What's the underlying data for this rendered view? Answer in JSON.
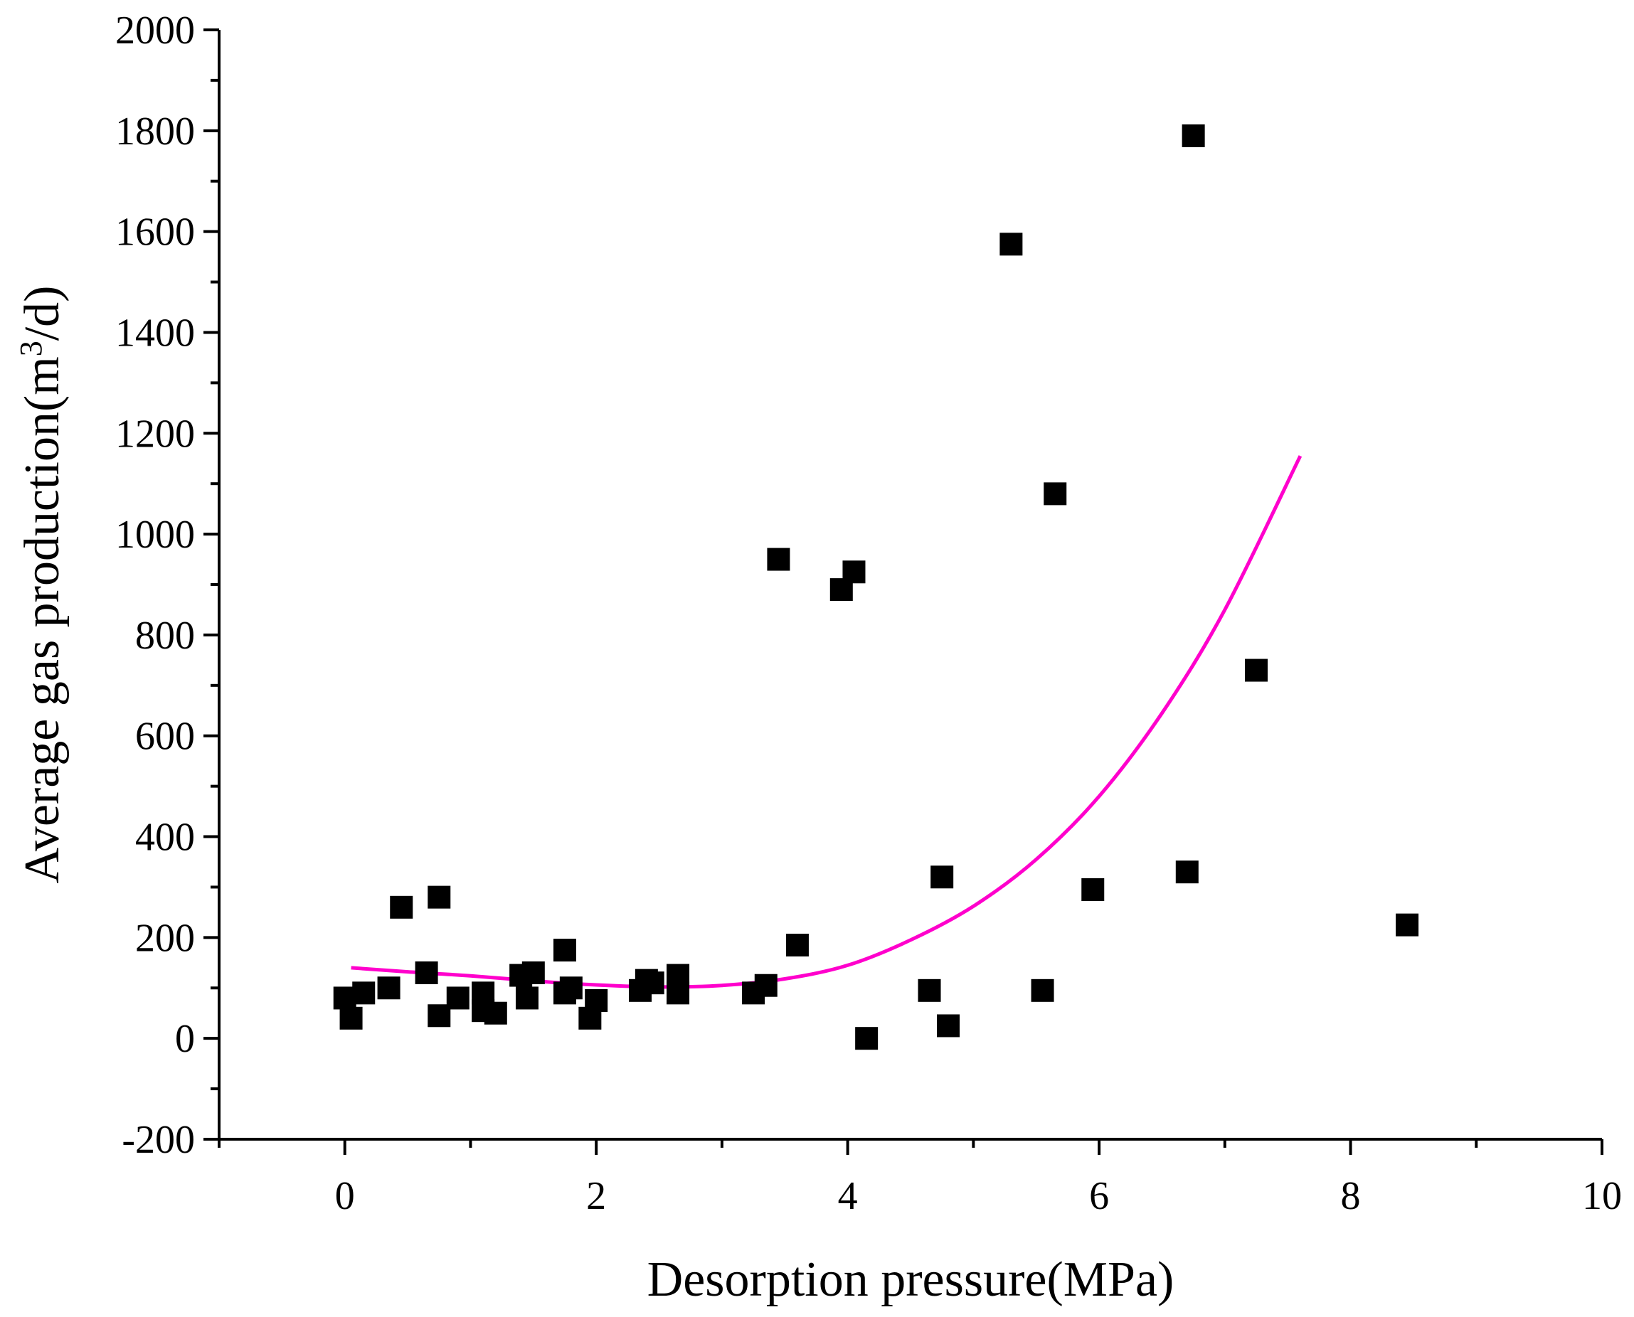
{
  "chart_data": {
    "type": "scatter",
    "title": "",
    "xlabel": "Desorption pressure(MPa)",
    "ylabel_prefix": "Average gas production(m",
    "ylabel_sup": "3",
    "ylabel_suffix": "/d)",
    "xlim": [
      -1,
      10
    ],
    "ylim": [
      -200,
      2000
    ],
    "x_ticks": [
      0,
      2,
      4,
      6,
      8,
      10
    ],
    "x_tick_labels": [
      "0",
      "2",
      "4",
      "6",
      "8",
      "10"
    ],
    "x_minor_ticks": [
      -1,
      1,
      3,
      5,
      7,
      9
    ],
    "y_ticks": [
      -200,
      0,
      200,
      400,
      600,
      800,
      1000,
      1200,
      1400,
      1600,
      1800,
      2000
    ],
    "y_tick_labels": [
      "-200",
      "0",
      "200",
      "400",
      "600",
      "800",
      "1000",
      "1200",
      "1400",
      "1600",
      "1800",
      "2000"
    ],
    "y_minor_ticks": [
      -100,
      100,
      300,
      500,
      700,
      900,
      1100,
      1300,
      1500,
      1700,
      1900
    ],
    "marker_color": "#000000",
    "fit_color": "#ff00cc",
    "points": [
      [
        0.0,
        80
      ],
      [
        0.05,
        40
      ],
      [
        0.15,
        90
      ],
      [
        0.35,
        100
      ],
      [
        0.45,
        260
      ],
      [
        0.65,
        130
      ],
      [
        0.75,
        280
      ],
      [
        0.75,
        45
      ],
      [
        0.9,
        80
      ],
      [
        1.1,
        90
      ],
      [
        1.1,
        55
      ],
      [
        1.2,
        50
      ],
      [
        1.4,
        125
      ],
      [
        1.45,
        80
      ],
      [
        1.5,
        130
      ],
      [
        1.75,
        175
      ],
      [
        1.75,
        90
      ],
      [
        1.8,
        100
      ],
      [
        1.95,
        40
      ],
      [
        2.0,
        75
      ],
      [
        2.35,
        95
      ],
      [
        2.4,
        115
      ],
      [
        2.45,
        110
      ],
      [
        2.65,
        125
      ],
      [
        2.65,
        90
      ],
      [
        3.25,
        90
      ],
      [
        3.35,
        105
      ],
      [
        3.45,
        950
      ],
      [
        3.6,
        185
      ],
      [
        3.95,
        890
      ],
      [
        4.05,
        925
      ],
      [
        4.15,
        0
      ],
      [
        4.65,
        95
      ],
      [
        4.75,
        320
      ],
      [
        4.8,
        25
      ],
      [
        5.3,
        1575
      ],
      [
        5.55,
        95
      ],
      [
        5.65,
        1080
      ],
      [
        5.95,
        295
      ],
      [
        6.7,
        330
      ],
      [
        6.75,
        1790
      ],
      [
        7.25,
        730
      ],
      [
        8.45,
        225
      ]
    ],
    "fit_curve": [
      [
        0.05,
        140
      ],
      [
        0.5,
        132
      ],
      [
        1.0,
        124
      ],
      [
        1.5,
        114
      ],
      [
        2.0,
        106
      ],
      [
        2.5,
        102
      ],
      [
        3.0,
        105
      ],
      [
        3.5,
        118
      ],
      [
        4.0,
        145
      ],
      [
        4.5,
        195
      ],
      [
        5.0,
        262
      ],
      [
        5.5,
        355
      ],
      [
        6.0,
        480
      ],
      [
        6.5,
        645
      ],
      [
        7.0,
        850
      ],
      [
        7.6,
        1155
      ]
    ]
  }
}
